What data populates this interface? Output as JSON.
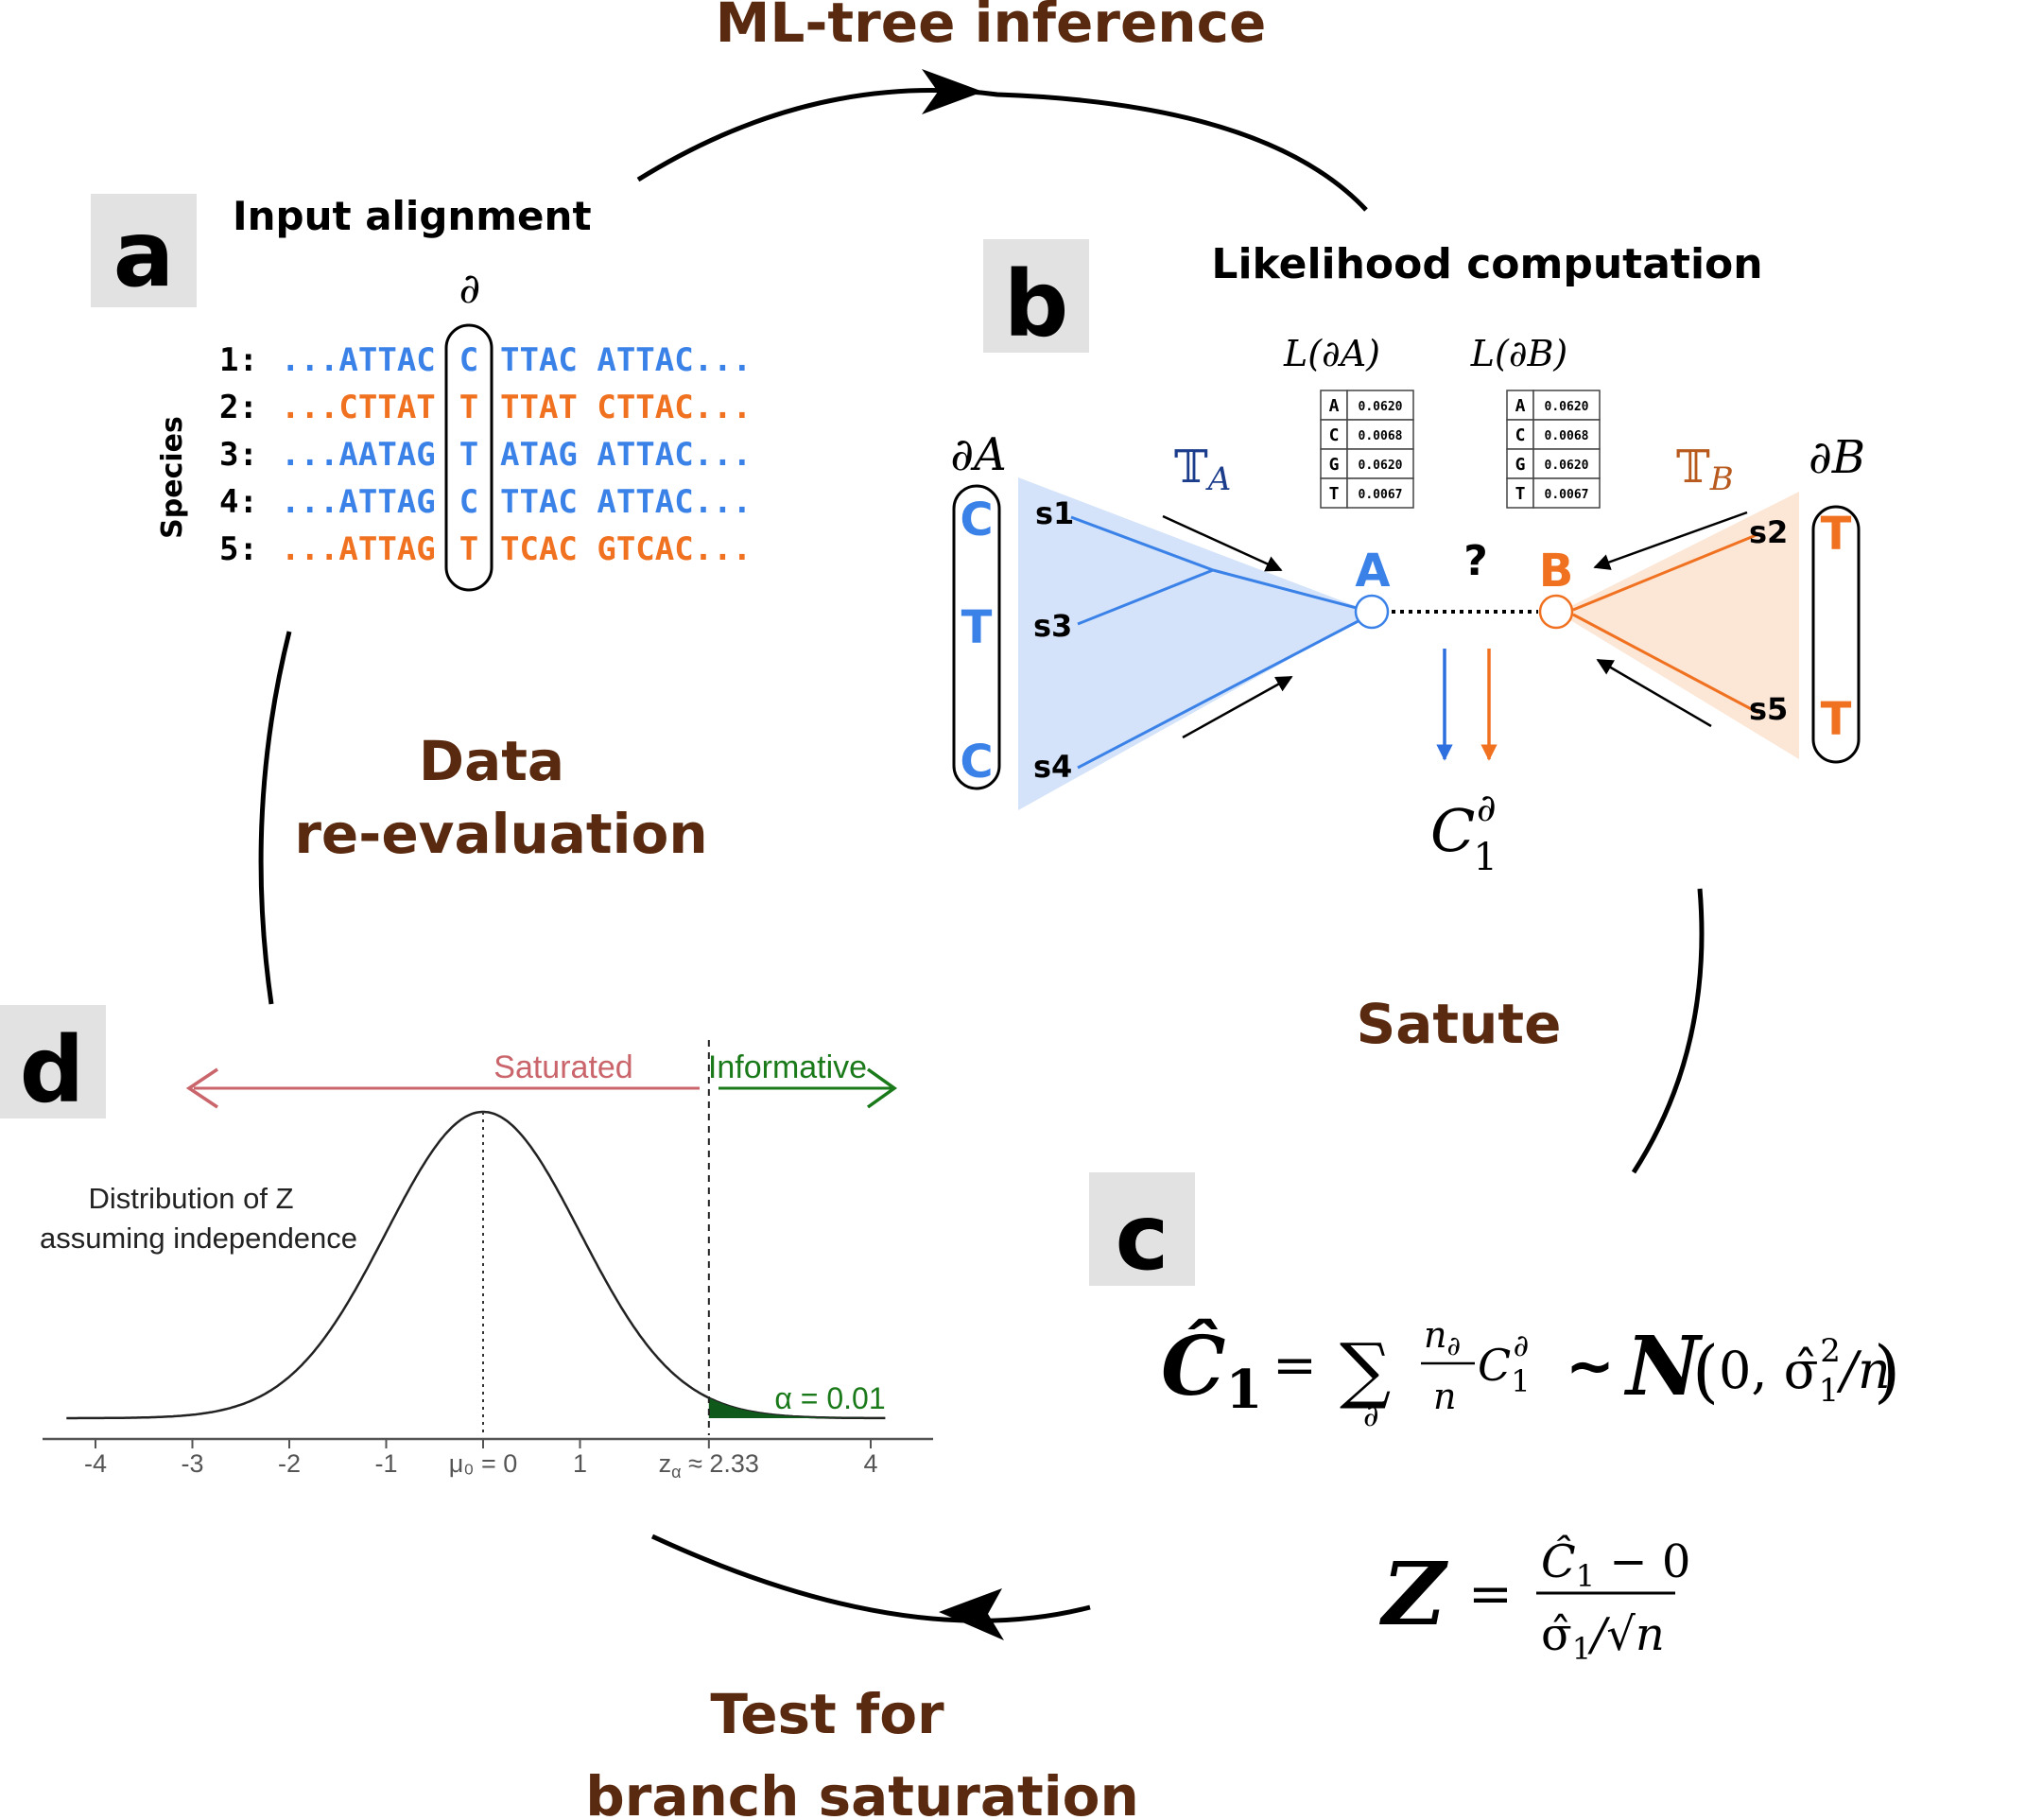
{
  "cycle": {
    "top": "ML-tree inference",
    "left_line1": "Data",
    "left_line2": "re-evaluation",
    "right": "Satute",
    "bottom_line1": "Test for",
    "bottom_line2": "branch saturation"
  },
  "panel_a": {
    "letter": "a",
    "title": "Input  alignment",
    "partial_symbol": "∂",
    "axis_label": "Species",
    "rows": [
      {
        "num": "1:",
        "left": "...ATTAC",
        "site": "C",
        "right": "TTAC ATTAC...",
        "color": "#3b82e8"
      },
      {
        "num": "2:",
        "left": "...CTTAT",
        "site": "T",
        "right": "TTAT CTTAC...",
        "color": "#f07120"
      },
      {
        "num": "3:",
        "left": "...AATAG",
        "site": "T",
        "right": "ATAG ATTAC...",
        "color": "#3b82e8"
      },
      {
        "num": "4:",
        "left": "...ATTAG",
        "site": "C",
        "right": "TTAC ATTAC...",
        "color": "#3b82e8"
      },
      {
        "num": "5:",
        "left": "...ATTAG",
        "site": "T",
        "right": "TCAC GTCAC...",
        "color": "#f07120"
      }
    ]
  },
  "panel_b": {
    "letter": "b",
    "title": "Likelihood computation",
    "dA": "∂A",
    "dB": "∂B",
    "bases_A": [
      "C",
      "T",
      "C"
    ],
    "bases_B": [
      "T",
      "T"
    ],
    "leaves_A": [
      "s1",
      "s3",
      "s4"
    ],
    "leaves_B": [
      "s2",
      "s5"
    ],
    "tree_A": "𝕋",
    "tree_A_sub": "A",
    "tree_B": "𝕋",
    "tree_B_sub": "B",
    "node_A": "A",
    "node_B": "B",
    "question": "?",
    "L_A_label": "L(∂A)",
    "L_B_label": "L(∂B)",
    "L_A": [
      [
        "A",
        "0.0620"
      ],
      [
        "C",
        "0.0068"
      ],
      [
        "G",
        "0.0620"
      ],
      [
        "T",
        "0.0067"
      ]
    ],
    "L_B": [
      [
        "A",
        "0.0620"
      ],
      [
        "C",
        "0.0068"
      ],
      [
        "G",
        "0.0620"
      ],
      [
        "T",
        "0.0067"
      ]
    ],
    "C_symbol": "C",
    "C_sub": "1",
    "C_sup": "∂",
    "colors": {
      "blue": "#3b82e8",
      "orange": "#f07120",
      "blue_fill": "#d4e3f9",
      "orange_fill": "#fce6d6"
    }
  },
  "panel_c": {
    "letter": "c",
    "eq1_lhs": "Ĉ",
    "eq1_lhs_sub": "1",
    "eq1_eq": "=",
    "eq1_sum": "∑",
    "eq1_sum_sub": "∂",
    "eq1_frac_num": "n",
    "eq1_frac_num_sub": "∂",
    "eq1_frac_den": "n",
    "eq1_C": "C",
    "eq1_C_sub": "1",
    "eq1_C_sup": "∂",
    "eq1_tilde": "~",
    "eq1_N": "N",
    "eq1_open": "(",
    "eq1_args": "0, σ̂",
    "eq1_sigma_sub": "1",
    "eq1_sigma_sup": "2",
    "eq1_div": "/n",
    "eq1_close": ")",
    "eq2_lhs": "Z",
    "eq2_eq": "=",
    "eq2_num": "Ĉ",
    "eq2_num_sub": "1",
    "eq2_num_rest": " − 0",
    "eq2_den": "σ̂",
    "eq2_den_sub": "1",
    "eq2_den_rest": "/√n"
  },
  "panel_d": {
    "letter": "d",
    "saturated": "Saturated",
    "informative": "Informative",
    "dist_line1": "Distribution of Z",
    "dist_line2": "assuming independence",
    "alpha": "α = 0.01",
    "ticks": [
      "-4",
      "-3",
      "-2",
      "-1",
      "μ₀ = 0",
      "1",
      "z",
      "4"
    ],
    "z_tick_sub": "α",
    "z_tick_rest": " ≈ 2.33",
    "colors": {
      "saturated": "#c9656b",
      "informative": "#1a7a1a",
      "tail": "#0f5a1a"
    }
  }
}
